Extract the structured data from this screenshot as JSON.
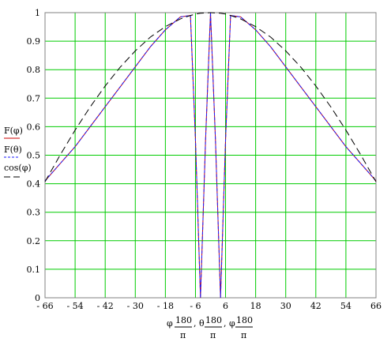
{
  "chart_data": {
    "type": "line",
    "title": "",
    "x": [
      -66,
      -60,
      -54,
      -48,
      -42,
      -36,
      -30,
      -24,
      -18,
      -12,
      -8,
      -6,
      -4,
      -2,
      0,
      2,
      4,
      6,
      8,
      12,
      18,
      24,
      30,
      36,
      42,
      48,
      54,
      60,
      66
    ],
    "series": [
      {
        "name": "F(φ)",
        "color": "#cc0000",
        "dash": "solid",
        "values": [
          0.41,
          0.47,
          0.53,
          0.6,
          0.67,
          0.74,
          0.81,
          0.88,
          0.94,
          0.985,
          0.99,
          0.55,
          0.0,
          0.55,
          1.0,
          0.55,
          0.0,
          0.55,
          0.99,
          0.985,
          0.94,
          0.88,
          0.81,
          0.74,
          0.67,
          0.6,
          0.53,
          0.47,
          0.41
        ]
      },
      {
        "name": "F(θ)",
        "color": "#1a1aff",
        "dash": "dashed",
        "values": [
          0.41,
          0.47,
          0.53,
          0.6,
          0.67,
          0.74,
          0.81,
          0.88,
          0.94,
          0.985,
          0.99,
          0.55,
          0.0,
          0.55,
          1.0,
          0.55,
          0.0,
          0.55,
          0.99,
          0.985,
          0.94,
          0.88,
          0.81,
          0.74,
          0.67,
          0.6,
          0.53,
          0.47,
          0.41
        ]
      },
      {
        "name": "cos(φ)",
        "color": "#000000",
        "dash": "longdash",
        "values": [
          0.407,
          0.5,
          0.588,
          0.669,
          0.743,
          0.809,
          0.866,
          0.914,
          0.951,
          0.978,
          0.99,
          0.995,
          0.998,
          0.999,
          1.0,
          0.999,
          0.998,
          0.995,
          0.99,
          0.978,
          0.951,
          0.914,
          0.866,
          0.809,
          0.743,
          0.669,
          0.588,
          0.5,
          0.407
        ]
      }
    ],
    "xlim": [
      -66,
      66
    ],
    "ylim": [
      0,
      1
    ],
    "xticks": [
      -66,
      -54,
      -42,
      -30,
      -18,
      -6,
      6,
      18,
      30,
      42,
      54,
      66
    ],
    "xtick_labels": [
      "- 66",
      "- 54",
      "- 42",
      "- 30",
      "- 18",
      "- 6",
      "6",
      "18",
      "30",
      "42",
      "54",
      "66"
    ],
    "yticks": [
      0,
      0.1,
      0.2,
      0.3,
      0.4,
      0.5,
      0.6,
      0.7,
      0.8,
      0.9,
      1
    ],
    "ytick_labels": [
      "0",
      "0.1",
      "0.2",
      "0.3",
      "0.4",
      "0.5",
      "0.6",
      "0.7",
      "0.8",
      "0.9",
      "1"
    ],
    "grid": true,
    "grid_color": "#00cc00",
    "legend": [
      "F(φ)",
      "F(θ)",
      "cos(φ)"
    ],
    "xlabel_parts": [
      "φ",
      "180",
      "π",
      ", θ",
      "180",
      "π",
      ", φ",
      "180",
      "π"
    ]
  }
}
